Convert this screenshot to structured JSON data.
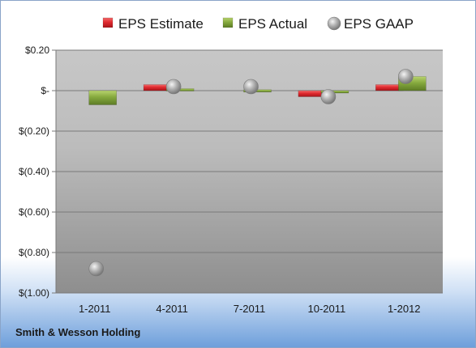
{
  "footer": {
    "company": "Smith & Wesson Holding"
  },
  "chart_data": {
    "type": "bar",
    "categories": [
      "1-2011",
      "4-2011",
      "7-2011",
      "10-2011",
      "1-2012"
    ],
    "series": [
      {
        "name": "EPS Estimate",
        "values": [
          null,
          0.03,
          null,
          -0.03,
          0.03
        ],
        "color": "#d9282e"
      },
      {
        "name": "EPS Actual",
        "values": [
          -0.07,
          0.01,
          0.005,
          -0.005,
          0.07
        ],
        "color": "#7fa33a"
      },
      {
        "name": "EPS GAAP",
        "values": [
          -0.88,
          0.02,
          0.02,
          -0.03,
          0.07
        ],
        "color": "#9a9a9a",
        "marker": "sphere"
      }
    ],
    "yticks": [
      0.2,
      0,
      -0.2,
      -0.4,
      -0.6,
      -0.8,
      -1.0
    ],
    "ytick_labels": [
      "$0.20",
      "$-",
      "$(0.20)",
      "$(0.40)",
      "$(0.60)",
      "$(0.80)",
      "$(1.00)"
    ],
    "ylim": [
      -1.0,
      0.2
    ],
    "grid": true,
    "legend_position": "top"
  }
}
